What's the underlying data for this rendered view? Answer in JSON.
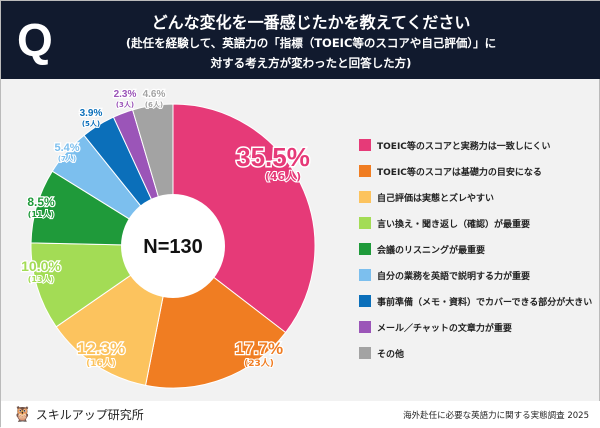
{
  "header": {
    "q": "Q",
    "title": "どんな変化を一番感じたかを教えてください",
    "subtitle1": "(赴任を経験して、英語力の「指標（TOEIC等のスコアや自己評価）」に",
    "subtitle2": "対する考え方が変わったと回答した方)"
  },
  "chart_data": {
    "type": "pie",
    "style": "donut",
    "center_label": "N=130",
    "categories": [
      "TOEIC等のスコアと実務力は一致しにくい",
      "TOEIC等のスコアは基礎力の目安になる",
      "自己評価は実態とズレやすい",
      "言い換え・聞き返し（確認）が最重要",
      "会議のリスニングが最重要",
      "自分の業務を英語で説明する力が重要",
      "事前準備（メモ・資料）でカバーできる部分が大きい",
      "メール／チャットの文章力が重要",
      "その他"
    ],
    "values": [
      35.5,
      17.7,
      12.3,
      10.0,
      8.5,
      5.4,
      3.9,
      2.3,
      4.6
    ],
    "value_labels": [
      "35.5%",
      "17.7%",
      "12.3%",
      "10.0%",
      "8.5%",
      "5.4%",
      "3.9%",
      "2.3%",
      "4.6%"
    ],
    "counts": [
      "(46人)",
      "(23人)",
      "(16人)",
      "(13人)",
      "(11人)",
      "(7人)",
      "(5人)",
      "(3人)",
      "(6人)"
    ],
    "colors": [
      "#e63a78",
      "#f07d22",
      "#fcc35e",
      "#a3dc55",
      "#1f9a3a",
      "#7cbfee",
      "#0b6fba",
      "#9b55b8",
      "#a3a3a3"
    ],
    "legend_position": "right"
  },
  "footer": {
    "brand": "スキルアップ研究所",
    "source": "海外赴任に必要な英語力に関する実態調査 2025"
  }
}
